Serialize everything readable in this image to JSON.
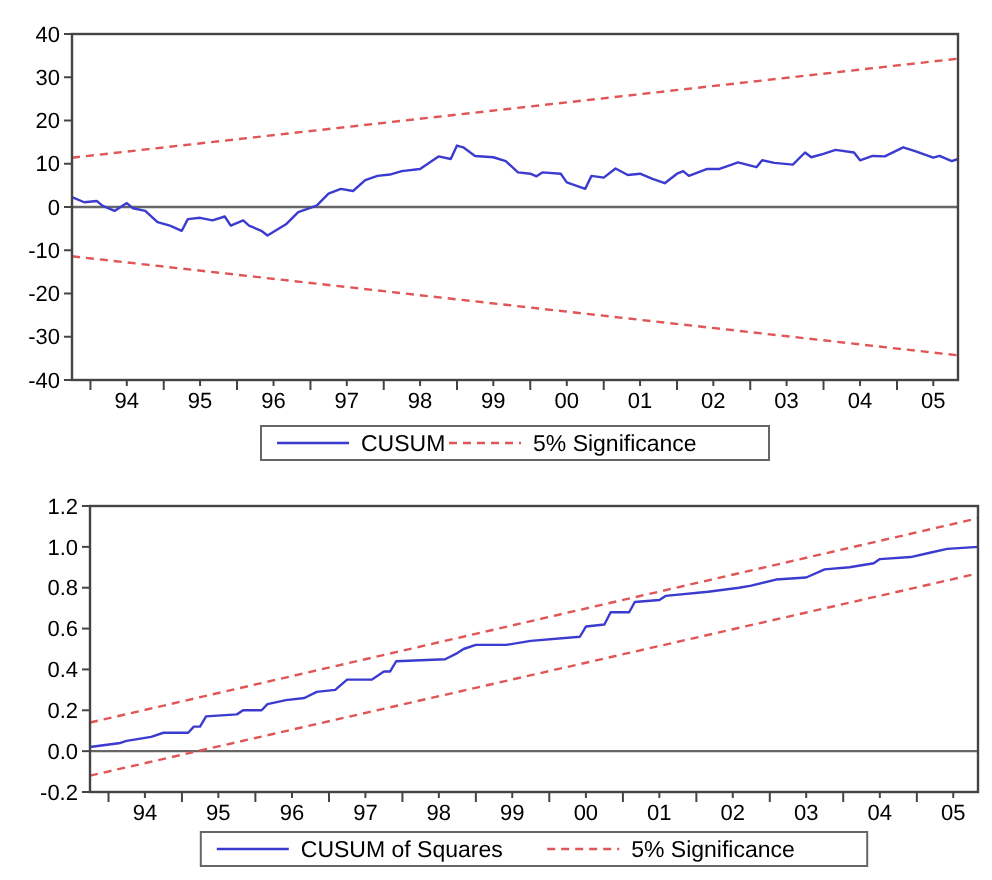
{
  "chart_data": [
    {
      "type": "line",
      "xlim": [
        "1993-10",
        "2005-11"
      ],
      "ylim": [
        -40,
        40
      ],
      "yticks": [
        -40,
        -30,
        -20,
        -10,
        0,
        10,
        20,
        30,
        40
      ],
      "xticks": [
        {
          "value": "1994-01",
          "label": null
        },
        {
          "value": "1994-07",
          "label": "94"
        },
        {
          "value": "1995-01",
          "label": null
        },
        {
          "value": "1995-07",
          "label": "95"
        },
        {
          "value": "1996-01",
          "label": null
        },
        {
          "value": "1996-07",
          "label": "96"
        },
        {
          "value": "1997-01",
          "label": null
        },
        {
          "value": "1997-07",
          "label": "97"
        },
        {
          "value": "1998-01",
          "label": null
        },
        {
          "value": "1998-07",
          "label": "98"
        },
        {
          "value": "1999-01",
          "label": null
        },
        {
          "value": "1999-07",
          "label": "99"
        },
        {
          "value": "2000-01",
          "label": null
        },
        {
          "value": "2000-07",
          "label": "00"
        },
        {
          "value": "2001-01",
          "label": null
        },
        {
          "value": "2001-07",
          "label": "01"
        },
        {
          "value": "2002-01",
          "label": null
        },
        {
          "value": "2002-07",
          "label": "02"
        },
        {
          "value": "2003-01",
          "label": null
        },
        {
          "value": "2003-07",
          "label": "03"
        },
        {
          "value": "2004-01",
          "label": null
        },
        {
          "value": "2004-07",
          "label": "04"
        },
        {
          "value": "2005-01",
          "label": null
        },
        {
          "value": "2005-07",
          "label": "05"
        }
      ],
      "grid": false,
      "legend": "bottom",
      "ref_lines": [
        {
          "axis": "y",
          "value": 0,
          "label": null,
          "color": "#666666"
        }
      ],
      "series": [
        {
          "name": "CUSUM",
          "color": "#3b3bd0",
          "line_style": "solid",
          "x": [
            "1993-10",
            "1993-12",
            "1994-02",
            "1994-03",
            "1994-05",
            "1994-07",
            "1994-08",
            "1994-10",
            "1994-12",
            "1995-02",
            "1995-04",
            "1995-05",
            "1995-07",
            "1995-09",
            "1995-11",
            "1995-12",
            "1996-02",
            "1996-03",
            "1996-05",
            "1996-06",
            "1996-09",
            "1996-11",
            "1997-02",
            "1997-04",
            "1997-06",
            "1997-08",
            "1997-10",
            "1997-12",
            "1998-02",
            "1998-04",
            "1998-07",
            "1998-10",
            "1998-12",
            "1999-01",
            "1999-02",
            "1999-04",
            "1999-07",
            "1999-09",
            "1999-11",
            "2000-01",
            "2000-02",
            "2000-03",
            "2000-06",
            "2000-07",
            "2000-10",
            "2000-11",
            "2001-01",
            "2001-03",
            "2001-05",
            "2001-07",
            "2001-09",
            "2001-11",
            "2002-01",
            "2002-02",
            "2002-03",
            "2002-06",
            "2002-08",
            "2002-10",
            "2002-11",
            "2003-02",
            "2003-03",
            "2003-05",
            "2003-08",
            "2003-10",
            "2003-11",
            "2004-01",
            "2004-03",
            "2004-06",
            "2004-07",
            "2004-09",
            "2004-11",
            "2005-02",
            "2005-04",
            "2005-07",
            "2005-08",
            "2005-10",
            "2005-11"
          ],
          "values": [
            2.3,
            1.1,
            1.4,
            0.3,
            -0.9,
            0.9,
            -0.3,
            -0.9,
            -3.5,
            -4.3,
            -5.5,
            -2.8,
            -2.5,
            -3.1,
            -2.2,
            -4.3,
            -3.1,
            -4.3,
            -5.5,
            -6.6,
            -4.0,
            -1.2,
            0.3,
            3.1,
            4.2,
            3.7,
            6.2,
            7.2,
            7.5,
            8.3,
            8.8,
            11.7,
            11.1,
            14.2,
            13.8,
            11.8,
            11.5,
            10.6,
            8.0,
            7.7,
            7.1,
            8.0,
            7.7,
            5.7,
            4.2,
            7.2,
            6.8,
            8.9,
            7.4,
            7.7,
            6.5,
            5.5,
            7.7,
            8.3,
            7.2,
            8.8,
            8.8,
            9.8,
            10.3,
            9.2,
            10.8,
            10.2,
            9.8,
            12.6,
            11.5,
            12.3,
            13.2,
            12.6,
            10.8,
            11.8,
            11.7,
            13.8,
            12.9,
            11.4,
            11.8,
            10.6,
            11.1
          ]
        },
        {
          "name": "5% Significance",
          "color": "#e05555",
          "line_style": "dashed",
          "x": [
            "1993-10",
            "2005-11"
          ],
          "values": [
            11.4,
            34.3
          ]
        },
        {
          "color": "#e05555",
          "line_style": "dashed",
          "x": [
            "1993-10",
            "2005-11"
          ],
          "values": [
            -11.4,
            -34.3
          ]
        }
      ]
    },
    {
      "type": "line",
      "xlim": [
        "1993-10",
        "2005-11"
      ],
      "ylim": [
        -0.2,
        1.2
      ],
      "yticks": [
        -0.2,
        {
          "value": 0,
          "label": "0.0"
        },
        0.2,
        0.4,
        0.6,
        0.8,
        {
          "value": 1,
          "label": "1.0"
        },
        1.2
      ],
      "xticks": [
        {
          "value": "1994-01",
          "label": null
        },
        {
          "value": "1994-07",
          "label": "94"
        },
        {
          "value": "1995-01",
          "label": null
        },
        {
          "value": "1995-07",
          "label": "95"
        },
        {
          "value": "1996-01",
          "label": null
        },
        {
          "value": "1996-07",
          "label": "96"
        },
        {
          "value": "1997-01",
          "label": null
        },
        {
          "value": "1997-07",
          "label": "97"
        },
        {
          "value": "1998-01",
          "label": null
        },
        {
          "value": "1998-07",
          "label": "98"
        },
        {
          "value": "1999-01",
          "label": null
        },
        {
          "value": "1999-07",
          "label": "99"
        },
        {
          "value": "2000-01",
          "label": null
        },
        {
          "value": "2000-07",
          "label": "00"
        },
        {
          "value": "2001-01",
          "label": null
        },
        {
          "value": "2001-07",
          "label": "01"
        },
        {
          "value": "2002-01",
          "label": null
        },
        {
          "value": "2002-07",
          "label": "02"
        },
        {
          "value": "2003-01",
          "label": null
        },
        {
          "value": "2003-07",
          "label": "03"
        },
        {
          "value": "2004-01",
          "label": null
        },
        {
          "value": "2004-07",
          "label": "04"
        },
        {
          "value": "2005-01",
          "label": null
        },
        {
          "value": "2005-07",
          "label": "05"
        }
      ],
      "grid": false,
      "legend": "bottom",
      "ref_lines": [
        {
          "axis": "y",
          "value": 0,
          "label": null,
          "color": "#666666"
        }
      ],
      "series": [
        {
          "name": "CUSUM of Squares",
          "color": "#3b3bd0",
          "line_style": "solid",
          "x": [
            "1993-10",
            "1994-03",
            "1994-04",
            "1994-08",
            "1994-10",
            "1995-02",
            "1995-03",
            "1995-04",
            "1995-05",
            "1995-10",
            "1995-11",
            "1996-02",
            "1996-03",
            "1996-06",
            "1996-09",
            "1996-11",
            "1997-02",
            "1997-04",
            "1997-08",
            "1997-10",
            "1997-11",
            "1997-12",
            "1998-08",
            "1998-10",
            "1998-11",
            "1999-01",
            "1999-06",
            "1999-10",
            "2000-06",
            "2000-07",
            "2000-10",
            "2000-11",
            "2001-02",
            "2001-03",
            "2001-07",
            "2001-08",
            "2002-03",
            "2002-08",
            "2002-10",
            "2003-02",
            "2003-07",
            "2003-10",
            "2004-02",
            "2004-06",
            "2004-07",
            "2004-12",
            "2005-03",
            "2005-06",
            "2005-11"
          ],
          "values": [
            0.02,
            0.04,
            0.05,
            0.07,
            0.09,
            0.09,
            0.12,
            0.12,
            0.17,
            0.18,
            0.2,
            0.2,
            0.23,
            0.25,
            0.26,
            0.29,
            0.3,
            0.35,
            0.35,
            0.39,
            0.39,
            0.44,
            0.45,
            0.48,
            0.5,
            0.52,
            0.52,
            0.54,
            0.56,
            0.61,
            0.62,
            0.68,
            0.68,
            0.73,
            0.74,
            0.76,
            0.78,
            0.8,
            0.81,
            0.84,
            0.85,
            0.89,
            0.9,
            0.92,
            0.94,
            0.95,
            0.97,
            0.99,
            1.0
          ]
        },
        {
          "name": "5% Significance",
          "color": "#e05555",
          "line_style": "dashed",
          "x": [
            "1993-10",
            "2005-11"
          ],
          "values": [
            0.14,
            1.14
          ]
        },
        {
          "color": "#e05555",
          "line_style": "dashed",
          "x": [
            "1993-10",
            "2005-11"
          ],
          "values": [
            -0.12,
            0.87
          ]
        }
      ]
    }
  ]
}
